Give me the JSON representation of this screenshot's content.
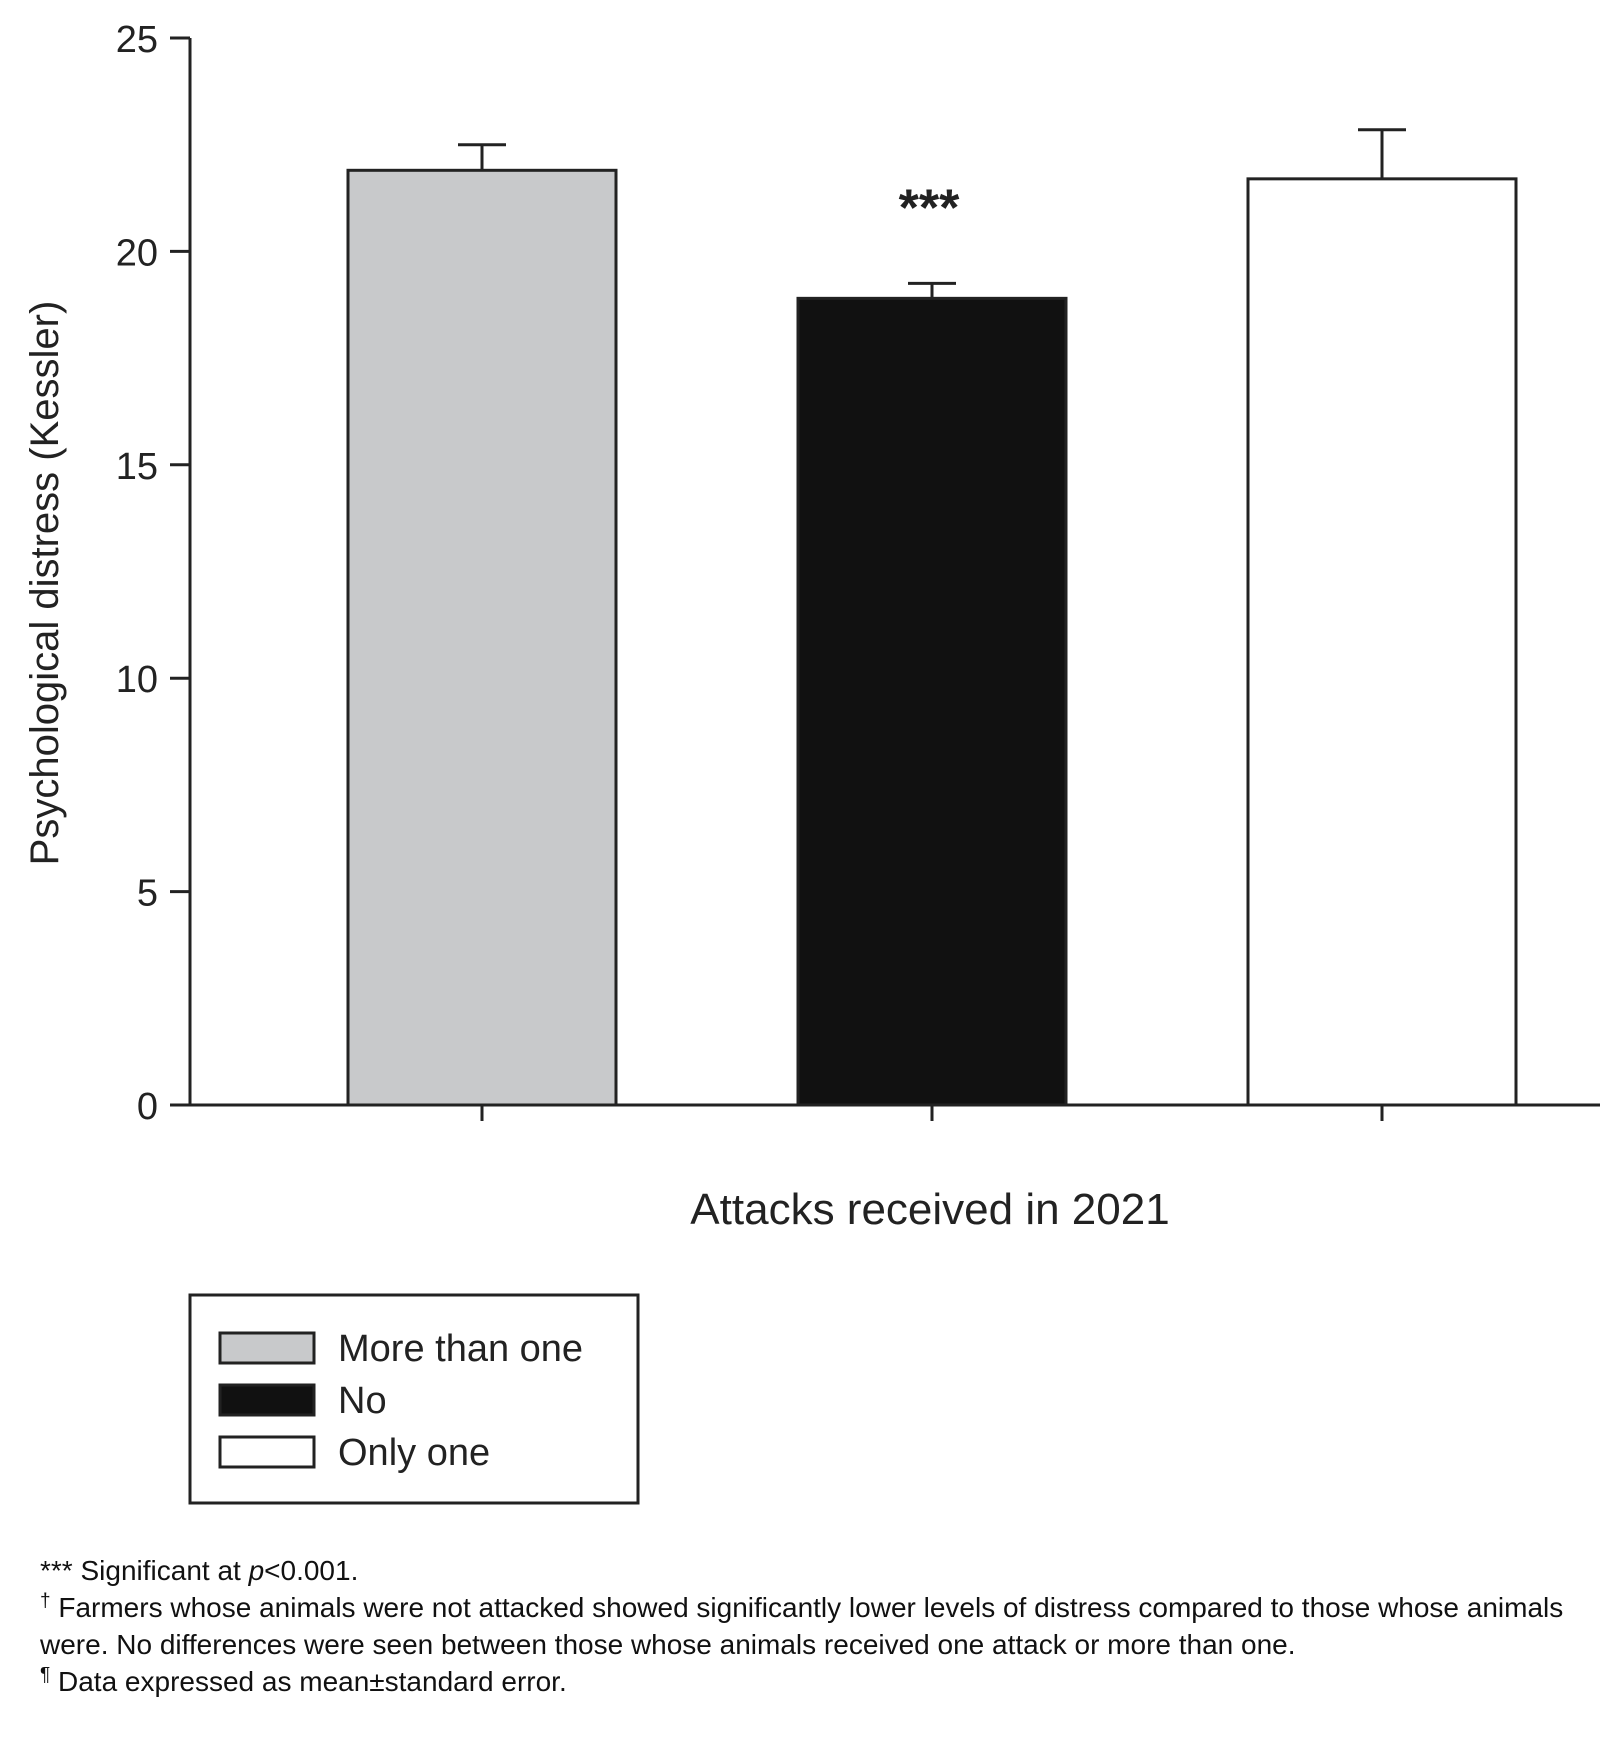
{
  "chart_data": {
    "type": "bar",
    "title": "",
    "xlabel": "Attacks received in 2021",
    "ylabel": "Psychological distress (Kessler)",
    "ylim": [
      0,
      25
    ],
    "yticks": [
      "0",
      "5",
      "10",
      "15",
      "20",
      "25"
    ],
    "categories": [
      "More than one",
      "No",
      "Only one"
    ],
    "values": [
      21.9,
      18.9,
      21.7
    ],
    "errors": [
      0.6,
      0.35,
      1.15
    ],
    "colors": [
      "#c8c9cb",
      "#111111",
      "#ffffff"
    ],
    "annotations": [
      {
        "category": "No",
        "text": "***"
      }
    ],
    "legend": {
      "placement": "bottom-left",
      "entries": [
        "More than one",
        "No",
        "Only one"
      ]
    },
    "grid": false
  },
  "notes": {
    "n1_marker": "***",
    "n1_text_a": " Significant at ",
    "n1_p": "p",
    "n1_text_b": "<0.001.",
    "n2_marker": "†",
    "n2_text": " Farmers whose animals were not attacked showed significantly lower levels of distress compared to those whose animals were. No differences were seen between those whose animals received one attack or more than one.",
    "n3_marker": "¶",
    "n3_text": " Data expressed as mean±standard error."
  }
}
